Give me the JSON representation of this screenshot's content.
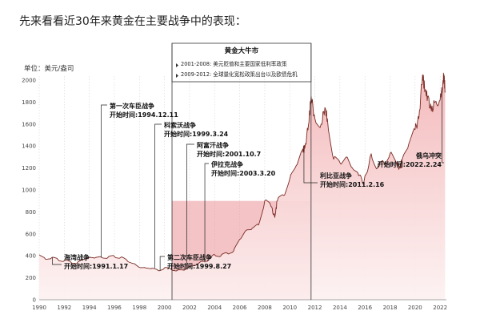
{
  "title": "先来看看近30年来黄金在主要战争中的表现：",
  "chart_data": {
    "type": "area",
    "unit_label": "单位：美元/盎司",
    "xlim": [
      1990,
      2022.5
    ],
    "ylim": [
      0,
      2000
    ],
    "x_ticks": [
      1990,
      1992,
      1994,
      1996,
      1998,
      2000,
      2002,
      2004,
      2006,
      2008,
      2010,
      2012,
      2014,
      2016,
      2018,
      2020,
      2022
    ],
    "y_ticks": [
      0,
      200,
      400,
      600,
      800,
      1000,
      1200,
      1400,
      1600,
      1800,
      2000
    ],
    "grid": "dotted vertical lines at each year tick",
    "series": [
      {
        "points": [
          [
            1990.0,
            410
          ],
          [
            1990.5,
            370
          ],
          [
            1991.0,
            385
          ],
          [
            1991.5,
            365
          ],
          [
            1992.0,
            355
          ],
          [
            1992.5,
            345
          ],
          [
            1993.0,
            330
          ],
          [
            1993.5,
            370
          ],
          [
            1994.0,
            385
          ],
          [
            1994.5,
            385
          ],
          [
            1995.0,
            385
          ],
          [
            1995.5,
            387
          ],
          [
            1996.0,
            395
          ],
          [
            1996.5,
            385
          ],
          [
            1997.0,
            360
          ],
          [
            1997.5,
            330
          ],
          [
            1998.0,
            295
          ],
          [
            1998.5,
            290
          ],
          [
            1999.0,
            287
          ],
          [
            1999.5,
            265
          ],
          [
            2000.0,
            290
          ],
          [
            2000.5,
            280
          ],
          [
            2001.0,
            265
          ],
          [
            2001.5,
            270
          ],
          [
            2002.0,
            300
          ],
          [
            2002.5,
            315
          ],
          [
            2003.0,
            350
          ],
          [
            2003.5,
            360
          ],
          [
            2004.0,
            410
          ],
          [
            2004.5,
            400
          ],
          [
            2005.0,
            425
          ],
          [
            2005.5,
            440
          ],
          [
            2006.0,
            550
          ],
          [
            2006.5,
            630
          ],
          [
            2007.0,
            650
          ],
          [
            2007.5,
            680
          ],
          [
            2008.0,
            900
          ],
          [
            2008.5,
            850
          ],
          [
            2008.8,
            750
          ],
          [
            2009.0,
            900
          ],
          [
            2009.5,
            950
          ],
          [
            2010.0,
            1100
          ],
          [
            2010.5,
            1220
          ],
          [
            2011.0,
            1360
          ],
          [
            2011.2,
            1380
          ],
          [
            2011.5,
            1600
          ],
          [
            2011.7,
            1850
          ],
          [
            2012.0,
            1650
          ],
          [
            2012.5,
            1600
          ],
          [
            2012.8,
            1750
          ],
          [
            2013.0,
            1650
          ],
          [
            2013.5,
            1280
          ],
          [
            2014.0,
            1250
          ],
          [
            2014.5,
            1300
          ],
          [
            2015.0,
            1200
          ],
          [
            2015.5,
            1130
          ],
          [
            2015.9,
            1060
          ],
          [
            2016.5,
            1330
          ],
          [
            2017.0,
            1200
          ],
          [
            2017.5,
            1250
          ],
          [
            2018.0,
            1330
          ],
          [
            2018.5,
            1250
          ],
          [
            2018.8,
            1200
          ],
          [
            2019.0,
            1290
          ],
          [
            2019.5,
            1420
          ],
          [
            2020.0,
            1550
          ],
          [
            2020.3,
            1650
          ],
          [
            2020.6,
            2050
          ],
          [
            2020.8,
            1900
          ],
          [
            2021.0,
            1850
          ],
          [
            2021.3,
            1720
          ],
          [
            2021.6,
            1800
          ],
          [
            2022.0,
            1820
          ],
          [
            2022.2,
            1950
          ],
          [
            2022.3,
            2050
          ],
          [
            2022.4,
            1900
          ]
        ]
      }
    ],
    "bull_market": {
      "label": "黄金大牛市",
      "from": 2000.6,
      "to": 2011.7,
      "notes": [
        "2001-2008: 美元贬值和主要国家低利率政策",
        "2009-2012: 全球量化宽松政策出台以及欧债危机"
      ]
    },
    "events": [
      {
        "name": "海湾战争",
        "date_text": "开始时间:1991.1.17",
        "x": 1991.05,
        "y": 385
      },
      {
        "name": "第一次车臣战争",
        "date_text": "开始时间:1994.12.11",
        "x": 1994.95,
        "y": 385
      },
      {
        "name": "科索沃战争",
        "date_text": "开始时间:1999.3.24",
        "x": 1999.23,
        "y": 287
      },
      {
        "name": "第二次车臣战争",
        "date_text": "开始时间:1999.8.27",
        "x": 1999.65,
        "y": 265
      },
      {
        "name": "阿富汗战争",
        "date_text": "开始时间:2001.10.7",
        "x": 2001.77,
        "y": 280
      },
      {
        "name": "伊拉克战争",
        "date_text": "开始时间:2003.3.20",
        "x": 2003.22,
        "y": 340
      },
      {
        "name": "利比亚战争",
        "date_text": "开始时间:2011.2.16",
        "x": 2011.13,
        "y": 1370
      },
      {
        "name": "俄乌冲突",
        "date_text": "开始时间:2022.2.24",
        "x": 2022.15,
        "y": 1900
      }
    ],
    "colors": {
      "line": "#7a2a22",
      "fill_top": "#f3b6b8",
      "fill_bottom": "#fdf1f1",
      "highlight": "#e99297"
    }
  }
}
